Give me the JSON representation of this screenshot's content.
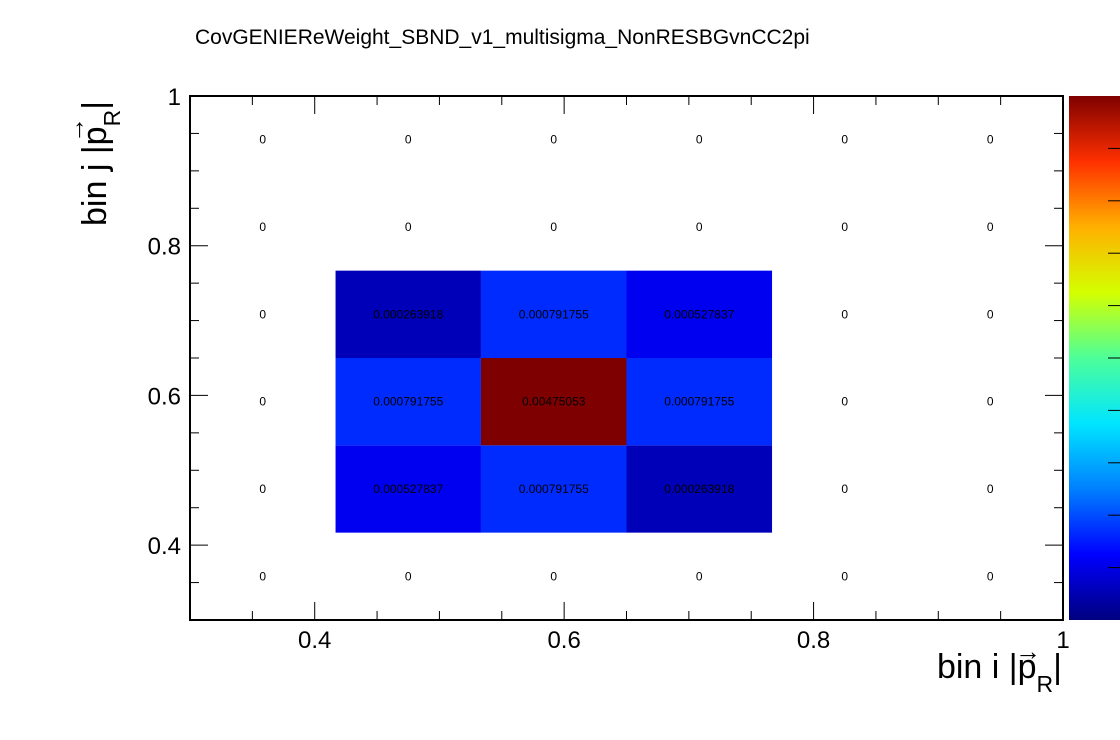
{
  "chart_data": {
    "type": "heatmap",
    "title": "CovGENIEReWeight_SBND_v1_multisigma_NonRESBGvnCC2pi",
    "xlabel": {
      "main": "bin i |",
      "vec": "p",
      "sub": "R",
      "end": "|"
    },
    "ylabel": {
      "main": "bin j |",
      "vec": "p",
      "sub": "R",
      "end": "|"
    },
    "xlim": [
      0.3,
      1.0
    ],
    "ylim": [
      0.3,
      1.0
    ],
    "x_tick_labels": [
      "0.4",
      "0.6",
      "0.8",
      "1"
    ],
    "y_tick_labels": [
      "0.4",
      "0.6",
      "0.8",
      "1"
    ],
    "x_bins": [
      0.3,
      0.4167,
      0.5333,
      0.65,
      0.7667,
      0.8833,
      1.0
    ],
    "y_bins": [
      0.3,
      0.4167,
      0.5333,
      0.65,
      0.7667,
      0.8833,
      1.0
    ],
    "cell_labels": [
      [
        "0",
        "0",
        "0",
        "0",
        "0",
        "0"
      ],
      [
        "0",
        "0.000527837",
        "0.000791755",
        "0.000263918",
        "0",
        "0"
      ],
      [
        "0",
        "0.000791755",
        "0.00475053",
        "0.000791755",
        "0",
        "0"
      ],
      [
        "0",
        "0.000263918",
        "0.000791755",
        "0.000527837",
        "0",
        "0"
      ],
      [
        "0",
        "0",
        "0",
        "0",
        "0",
        "0"
      ],
      [
        "0",
        "0",
        "0",
        "0",
        "0",
        "0"
      ]
    ],
    "values": [
      [
        0,
        0,
        0,
        0,
        0,
        0
      ],
      [
        0,
        0.000527837,
        0.000791755,
        0.000263918,
        0,
        0
      ],
      [
        0,
        0.000791755,
        0.00475053,
        0.000791755,
        0,
        0
      ],
      [
        0,
        0.000263918,
        0.000791755,
        0.000527837,
        0,
        0
      ],
      [
        0,
        0,
        0,
        0,
        0,
        0
      ],
      [
        0,
        0,
        0,
        0,
        0,
        0
      ]
    ],
    "color_range": [
      0,
      0.00475053
    ],
    "colormap": [
      "#00007f",
      "#0000ff",
      "#0080ff",
      "#00e5ff",
      "#4dff99",
      "#d4ff00",
      "#ffb000",
      "#ff3000",
      "#7f0000"
    ],
    "colorbar": true,
    "grid": false,
    "legend": "none"
  }
}
